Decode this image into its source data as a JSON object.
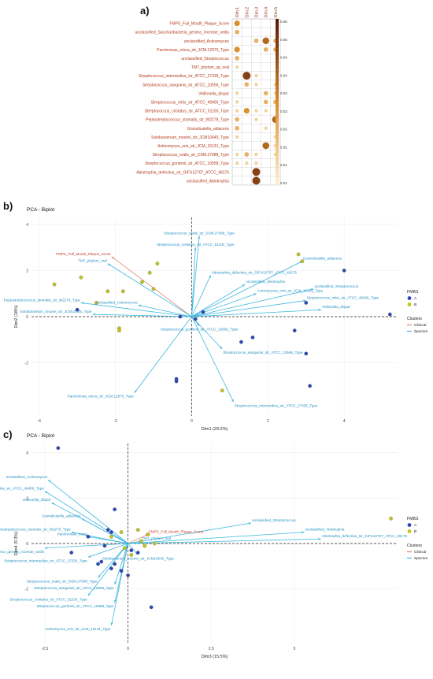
{
  "panel_labels": {
    "a": "a)",
    "b": "b)",
    "c": "c)"
  },
  "chart_data": [
    {
      "type": "heatmap",
      "panel": "a)",
      "columns": [
        "Dim.1",
        "Dim.2",
        "Dim.3",
        "Dim.4",
        "Dim.5"
      ],
      "rows": [
        "FMPS_Full_Mouth_Plaque_Score",
        "unclassified_Saccharibacteria_genera_incertae_sedis",
        "unclassified_Actinomyces",
        "Parvimonas_micra_str_JCM.12970_Type",
        "unclassified_Streptococcus",
        "TM7_phylum_sp_oral",
        "Streptococcus_intermedius_str_ATCC_27335_Type",
        "Streptococcus_sanguinis_str_ATCC_10556_Type",
        "Veillonella_dispar",
        "Streptococcus_mitis_str_ATCC_49456_Type",
        "Streptococcus_cristatus_str_ATCC_51100_Type",
        "Peptostreptococcus_stomatis_str_W2278_Type",
        "Granulicatella_adiacens",
        "Solobacterium_moorei_str_JCM10645_Type",
        "Actinomyces_oris_str_JCM_16131_Type",
        "Streptococcus_oralis_str_DSM.27088_Type",
        "Streptococcus_gordonii_str_ATCC_10558_Type",
        "Abiotrophia_defectiva_str_GIFU12707_ATCC_49176",
        "unclassified_Abiotrophia"
      ],
      "values": [
        [
          0.03,
          0.0,
          0.0,
          0.0,
          0.0
        ],
        [
          0.02,
          0.0,
          0.0,
          0.0,
          0.0
        ],
        [
          0.0,
          0.0,
          0.02,
          0.04,
          0.02
        ],
        [
          0.03,
          0.0,
          0.0,
          0.02,
          0.02
        ],
        [
          0.02,
          0.0,
          0.0,
          0.0,
          0.0
        ],
        [
          0.01,
          0.0,
          0.0,
          0.0,
          0.0
        ],
        [
          0.0,
          0.05,
          0.01,
          0.0,
          0.0
        ],
        [
          0.0,
          0.02,
          0.01,
          0.0,
          0.01
        ],
        [
          0.01,
          0.0,
          0.0,
          0.02,
          0.01
        ],
        [
          0.01,
          0.0,
          0.0,
          0.02,
          0.02
        ],
        [
          0.01,
          0.03,
          0.01,
          0.01,
          0.0
        ],
        [
          0.02,
          0.0,
          0.01,
          0.0,
          0.04
        ],
        [
          0.02,
          0.0,
          0.0,
          0.01,
          0.0
        ],
        [
          0.01,
          0.0,
          0.0,
          0.0,
          0.01
        ],
        [
          0.0,
          0.0,
          0.0,
          0.04,
          0.01
        ],
        [
          0.01,
          0.02,
          0.01,
          0.0,
          0.01
        ],
        [
          0.01,
          0.01,
          0.01,
          0.0,
          0.0
        ],
        [
          0.0,
          0.0,
          0.05,
          0.0,
          0.0
        ],
        [
          0.0,
          0.0,
          0.05,
          0.0,
          0.0
        ]
      ],
      "colorbar_ticks": [
        "0.06",
        "0.05",
        "0.04",
        "0.04",
        "0.03",
        "0.03",
        "0.02",
        "0.02",
        "0.01",
        "0.01"
      ],
      "colorbar_range": [
        0,
        0.06
      ],
      "colors": {
        "low": "#fff5d6",
        "mid": "#d9902e",
        "high": "#5a1a06"
      }
    },
    {
      "type": "scatter",
      "panel": "b)",
      "title": "PCA - Biplot",
      "xlabel": "Dim1 (29.2%)",
      "ylabel": "Dim2 (18%)",
      "xlim": [
        -4.2,
        5.4
      ],
      "ylim": [
        -4.3,
        4.3
      ],
      "xticks": [
        -4,
        -2,
        0,
        2,
        4
      ],
      "yticks": [
        -2,
        0,
        2,
        4
      ],
      "legend": {
        "fmbs_title": "FMBS",
        "fmbs_items": [
          {
            "label": "A",
            "color": "#2b47b8"
          },
          {
            "label": "B",
            "color": "#c4c41c"
          }
        ],
        "clusters_title": "Clusters",
        "clusters_items": [
          {
            "label": "Clinical",
            "color": "#e08a6a"
          },
          {
            "label": "Species",
            "color": "#3cb8e0"
          }
        ]
      },
      "points": [
        {
          "x": -0.9,
          "y": 2.3,
          "g": "B"
        },
        {
          "x": -1.1,
          "y": 1.9,
          "g": "B"
        },
        {
          "x": -1.0,
          "y": 1.2,
          "g": "B"
        },
        {
          "x": -1.3,
          "y": 1.5,
          "g": "B"
        },
        {
          "x": -1.8,
          "y": 1.1,
          "g": "B"
        },
        {
          "x": -2.2,
          "y": 1.1,
          "g": "B"
        },
        {
          "x": -3.6,
          "y": 1.4,
          "g": "B"
        },
        {
          "x": -2.5,
          "y": 0.6,
          "g": "B"
        },
        {
          "x": -1.9,
          "y": -0.5,
          "g": "B"
        },
        {
          "x": -1.9,
          "y": -0.6,
          "g": "B"
        },
        {
          "x": -2.9,
          "y": 1.7,
          "g": "B"
        },
        {
          "x": 2.8,
          "y": 2.7,
          "g": "B"
        },
        {
          "x": 2.9,
          "y": 2.4,
          "g": "B"
        },
        {
          "x": 0.8,
          "y": -3.2,
          "g": "B"
        },
        {
          "x": 1.6,
          "y": -0.9,
          "g": "A"
        },
        {
          "x": 1.3,
          "y": -1.1,
          "g": "A"
        },
        {
          "x": 2.7,
          "y": -0.6,
          "g": "A"
        },
        {
          "x": 3.0,
          "y": 0.6,
          "g": "A"
        },
        {
          "x": 4.0,
          "y": 2.0,
          "g": "A"
        },
        {
          "x": 5.2,
          "y": 0.1,
          "g": "A"
        },
        {
          "x": 3.1,
          "y": -3.0,
          "g": "A"
        },
        {
          "x": -0.4,
          "y": -2.7,
          "g": "A"
        },
        {
          "x": -0.4,
          "y": -2.8,
          "g": "A"
        },
        {
          "x": 3.0,
          "y": -1.6,
          "g": "A"
        },
        {
          "x": 0.1,
          "y": -0.1,
          "g": "A"
        },
        {
          "x": 0.3,
          "y": 0.2,
          "g": "A"
        },
        {
          "x": -0.3,
          "y": 0.0,
          "g": "A"
        },
        {
          "x": -3.0,
          "y": 0.3,
          "g": "A"
        }
      ],
      "vectors": [
        {
          "x": -2.1,
          "y": 2.6,
          "label": "FMPS_Full_Mouth_Plaque_Score",
          "cluster": "Clinical"
        },
        {
          "x": -2.2,
          "y": 2.3,
          "label": "TM7_phylum_oral",
          "cluster": "Species"
        },
        {
          "x": 0.2,
          "y": 3.5,
          "label": "Streptococcus_oralis_str_DSM.27088_Type",
          "cluster": "Species"
        },
        {
          "x": 0.1,
          "y": 3.0,
          "label": "Streptococcus_cristatus_str_ATCC_51100_Type",
          "cluster": "Species"
        },
        {
          "x": 2.9,
          "y": 2.4,
          "label": "Granulicatella_adiacens",
          "cluster": "Species"
        },
        {
          "x": 0.5,
          "y": 1.8,
          "label": "Abiotrophia_defectiva_str_GIFU12707_ATCC_49176",
          "cluster": "Species"
        },
        {
          "x": 1.4,
          "y": 1.4,
          "label": "unclassified_Abiotrophia",
          "cluster": "Species"
        },
        {
          "x": 3.2,
          "y": 1.2,
          "label": "unclassified_Streptococcus",
          "cluster": "Species"
        },
        {
          "x": 1.7,
          "y": 1.0,
          "label": "Actinomyces_oris_str_JCM_16131_Type",
          "cluster": "Species"
        },
        {
          "x": 3.0,
          "y": 0.7,
          "label": "Streptococcus_mitis_str_ATCC_49456_Type",
          "cluster": "Species"
        },
        {
          "x": 3.4,
          "y": 0.3,
          "label": "Veillonella_dispar",
          "cluster": "Species"
        },
        {
          "x": -2.9,
          "y": 0.6,
          "label": "Peptostreptococcus_stomatis_str_W2278_Type",
          "cluster": "Species"
        },
        {
          "x": -1.4,
          "y": 0.5,
          "label": "unclassified_Actinomyces",
          "cluster": "Species"
        },
        {
          "x": -2.6,
          "y": 0.1,
          "label": "Solobacterium_moorei_str_JCM10645_Type",
          "cluster": "Species"
        },
        {
          "x": 0.2,
          "y": -0.4,
          "label": "Streptococcus_gordonii_str_ATCC_10558_Type",
          "cluster": "Species"
        },
        {
          "x": 0.8,
          "y": -1.4,
          "label": "Streptococcus_sanguinis_str_ATCC_10556_Type",
          "cluster": "Species"
        },
        {
          "x": -1.5,
          "y": -3.3,
          "label": "Parvimonas_micra_str_JCM.12970_Type",
          "cluster": "Species"
        },
        {
          "x": 1.1,
          "y": -3.7,
          "label": "Streptococcus_intermedius_str_ATCC_27335_Type",
          "cluster": "Species"
        }
      ]
    },
    {
      "type": "scatter",
      "panel": "c)",
      "title": "PCA - Biplot",
      "xlabel": "Dim3 (15.5%)",
      "ylabel": "Dim4 (9.3%)",
      "xlim": [
        -2.9,
        8.1
      ],
      "ylim": [
        -4.4,
        4.4
      ],
      "xticks": [
        -2.5,
        0,
        2.5,
        5
      ],
      "yticks": [
        -2,
        0,
        2,
        4
      ],
      "legend": {
        "fmbs_title": "FMBS",
        "fmbs_items": [
          {
            "label": "A",
            "color": "#2b47b8"
          },
          {
            "label": "B",
            "color": "#c4c41c"
          }
        ],
        "clusters_title": "Clusters",
        "clusters_items": [
          {
            "label": "Clinical",
            "color": "#e08a6a"
          },
          {
            "label": "Species",
            "color": "#3cb8e0"
          }
        ]
      },
      "points": [
        {
          "x": -2.1,
          "y": 4.2,
          "g": "A"
        },
        {
          "x": -0.4,
          "y": 1.5,
          "g": "A"
        },
        {
          "x": -0.6,
          "y": 0.6,
          "g": "A"
        },
        {
          "x": -0.5,
          "y": 0.5,
          "g": "A"
        },
        {
          "x": -0.7,
          "y": -0.1,
          "g": "A"
        },
        {
          "x": -0.5,
          "y": -1.1,
          "g": "A"
        },
        {
          "x": -0.4,
          "y": -0.9,
          "g": "A"
        },
        {
          "x": -0.2,
          "y": -1.2,
          "g": "A"
        },
        {
          "x": 0.0,
          "y": -1.4,
          "g": "A"
        },
        {
          "x": 0.7,
          "y": -2.8,
          "g": "A"
        },
        {
          "x": 0.1,
          "y": -0.3,
          "g": "A"
        },
        {
          "x": 0.3,
          "y": -0.4,
          "g": "A"
        },
        {
          "x": -1.7,
          "y": -0.4,
          "g": "A"
        },
        {
          "x": -1.2,
          "y": 0.3,
          "g": "A"
        },
        {
          "x": -0.9,
          "y": -0.9,
          "g": "A"
        },
        {
          "x": -0.8,
          "y": -0.8,
          "g": "A"
        },
        {
          "x": 0.4,
          "y": 0.1,
          "g": "B"
        },
        {
          "x": 0.5,
          "y": -0.1,
          "g": "B"
        },
        {
          "x": 0.8,
          "y": 0.0,
          "g": "B"
        },
        {
          "x": -0.2,
          "y": 0.5,
          "g": "B"
        },
        {
          "x": 0.3,
          "y": 0.6,
          "g": "B"
        },
        {
          "x": -0.5,
          "y": 0.3,
          "g": "B"
        },
        {
          "x": 7.9,
          "y": 1.1,
          "g": "B"
        },
        {
          "x": 0.1,
          "y": -0.5,
          "g": "B"
        },
        {
          "x": 0.6,
          "y": 0.4,
          "g": "B"
        },
        {
          "x": -0.1,
          "y": -0.2,
          "g": "B"
        }
      ],
      "vectors": [
        {
          "x": -2.4,
          "y": 2.8,
          "label": "unclassified_Actinomyces",
          "cluster": "Species"
        },
        {
          "x": -2.5,
          "y": 2.3,
          "label": "Streptococcus_mitis_str_ATCC_49456_Type",
          "cluster": "Species"
        },
        {
          "x": -2.3,
          "y": 1.8,
          "label": "Veillonella_dispar",
          "cluster": "Species"
        },
        {
          "x": -1.4,
          "y": 1.1,
          "label": "Granulicatella_adiacens",
          "cluster": "Species"
        },
        {
          "x": -1.7,
          "y": 0.5,
          "label": "Peptostreptococcus_stomatis_str_W2278_Type",
          "cluster": "Species"
        },
        {
          "x": -1.2,
          "y": 0.3,
          "label": "Parvimonas_micra",
          "cluster": "Species"
        },
        {
          "x": 0.6,
          "y": 0.4,
          "label": "FMPS_Full_Mouth_Plaque_Score",
          "cluster": "Clinical"
        },
        {
          "x": 0.4,
          "y": 0.1,
          "label": "TM7_phylum_oral",
          "cluster": "Species"
        },
        {
          "x": 3.7,
          "y": 0.9,
          "label": "unclassified_Streptococcus",
          "cluster": "Species"
        },
        {
          "x": 5.3,
          "y": 0.5,
          "label": "unclassified_Abiotrophia",
          "cluster": "Species"
        },
        {
          "x": 5.8,
          "y": 0.2,
          "label": "Abiotrophia_defectiva_str_GIFU12707_ATCC_49176",
          "cluster": "Species"
        },
        {
          "x": -2.5,
          "y": -0.2,
          "label": "unclassified_Saccharibacteria_genera_incertae_sedis",
          "cluster": "Species"
        },
        {
          "x": 0.3,
          "y": -0.5,
          "label": "Solobacterium_moorei_str_JCM10645_Type",
          "cluster": "Species"
        },
        {
          "x": -1.2,
          "y": -0.6,
          "label": "Streptococcus_intermedius_str_ATCC_27335_Type",
          "cluster": "Species"
        },
        {
          "x": -0.9,
          "y": -1.5,
          "label": "Streptococcus_oralis_str_DSM.27088_Type",
          "cluster": "Species"
        },
        {
          "x": -0.4,
          "y": -1.8,
          "label": "Streptococcus_sanguinis_str_ATCC_10556_Type",
          "cluster": "Species"
        },
        {
          "x": -1.2,
          "y": -2.3,
          "label": "Streptococcus_cristatus_str_ATCC_51100_Type",
          "cluster": "Species"
        },
        {
          "x": -0.4,
          "y": -2.6,
          "label": "Streptococcus_gordonii_str_ATCC_10558_Type",
          "cluster": "Species"
        },
        {
          "x": -0.5,
          "y": -3.6,
          "label": "Actinomyces_oris_str_JCM_16131_Type",
          "cluster": "Species"
        }
      ]
    }
  ]
}
